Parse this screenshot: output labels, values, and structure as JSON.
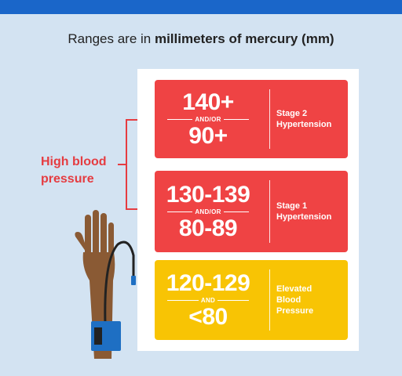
{
  "subtitle": {
    "prefix": "Ranges are in ",
    "bold": "millimeters of mercury (mm)"
  },
  "side_label": {
    "line1": "High blood",
    "line2": "pressure"
  },
  "categories": [
    {
      "top": "140+",
      "joiner": "AND/OR",
      "bottom": "90+",
      "label_line1": "Stage 2",
      "label_line2": "Hypertension",
      "color": "#ef4344"
    },
    {
      "top": "130-139",
      "joiner": "AND/OR",
      "bottom": "80-89",
      "label_line1": "Stage 1",
      "label_line2": "Hypertension",
      "color": "#ef4344"
    },
    {
      "top": "120-129",
      "joiner": "AND",
      "bottom": "<80",
      "label_line1": "Elevated",
      "label_line2": "Blood",
      "label_line3": "Pressure",
      "color": "#f8c404"
    }
  ],
  "colors": {
    "background": "#d3e3f2",
    "top_bar": "#1a66c9",
    "accent_red": "#e53c41",
    "cuff": "#1e6fc3",
    "skin": "#8a5a34"
  },
  "icons": [
    "hand-with-cuff-icon",
    "bracket-arrow-icon"
  ]
}
